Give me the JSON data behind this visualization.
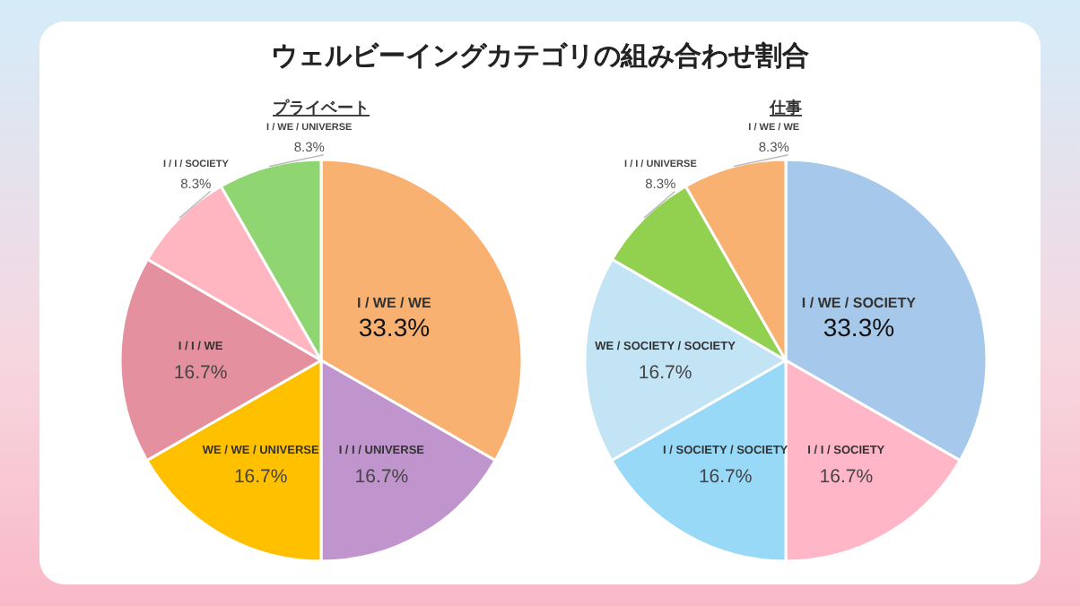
{
  "chart_data": [
    {
      "type": "pie",
      "title": "ウェルビーイングカテゴリの組み合わせ割合",
      "subtitle": "プライベート",
      "categories": [
        "I / WE / WE",
        "I / I / UNIVERSE",
        "WE / WE / UNIVERSE",
        "I / I / WE",
        "I / I / SOCIETY",
        "I / WE / UNIVERSE"
      ],
      "values": [
        33.3,
        16.7,
        16.7,
        16.7,
        8.3,
        8.3
      ],
      "value_labels": [
        "33.3%",
        "16.7%",
        "16.7%",
        "16.7%",
        "8.3%",
        "8.3%"
      ],
      "colors": [
        "#f9b172",
        "#c094cc",
        "#ffc000",
        "#e4909f",
        "#ffb6c1",
        "#8fd673"
      ]
    },
    {
      "type": "pie",
      "title": "仕事",
      "categories": [
        "I / WE / SOCIETY",
        "I / I / SOCIETY",
        "I / SOCIETY / SOCIETY",
        "WE / SOCIETY / SOCIETY",
        "I / I / UNIVERSE",
        "I / WE / WE"
      ],
      "values": [
        33.3,
        16.7,
        16.7,
        16.7,
        8.3,
        8.3
      ],
      "value_labels": [
        "33.3%",
        "16.7%",
        "16.7%",
        "16.7%",
        "8.3%",
        "8.3%"
      ],
      "colors": [
        "#a6c8ea",
        "#ffb6c6",
        "#97d9f6",
        "#c2e4f4",
        "#92d050",
        "#f9b172"
      ]
    }
  ]
}
